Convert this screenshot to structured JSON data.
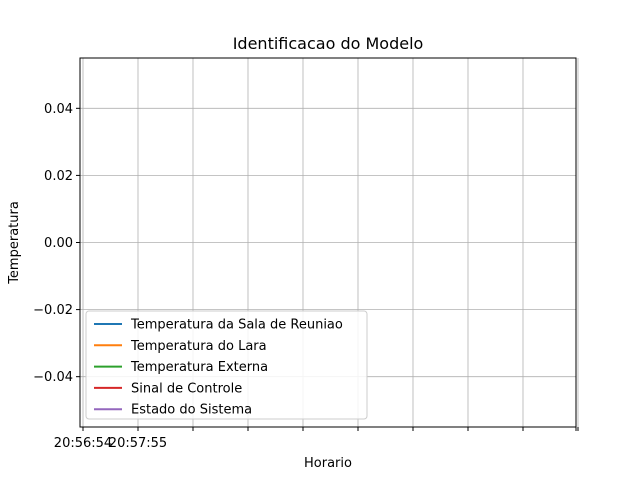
{
  "chart_data": {
    "type": "line",
    "title": "Identificacao do Modelo",
    "xlabel": "Horario",
    "ylabel": "Temperatura",
    "ylim": [
      -0.055,
      0.055
    ],
    "y_ticks": [
      0.04,
      0.02,
      0.0,
      -0.02,
      -0.04
    ],
    "y_tick_labels": [
      "0.04",
      "0.02",
      "0.00",
      "−0.02",
      "−0.04"
    ],
    "x_tick_labels": [
      "20:56:54",
      "20:57:55"
    ],
    "x_tick_count": 10,
    "grid": true,
    "legend_position": "lower-left",
    "series": [
      {
        "name": "Temperatura da Sala de Reuniao",
        "color": "#1f77b4",
        "values": []
      },
      {
        "name": "Temperatura do Lara",
        "color": "#ff7f0e",
        "values": []
      },
      {
        "name": "Temperatura Externa",
        "color": "#2ca02c",
        "values": []
      },
      {
        "name": "Sinal de Controle",
        "color": "#d62728",
        "values": []
      },
      {
        "name": "Estado do Sistema",
        "color": "#9467bd",
        "values": []
      }
    ]
  }
}
